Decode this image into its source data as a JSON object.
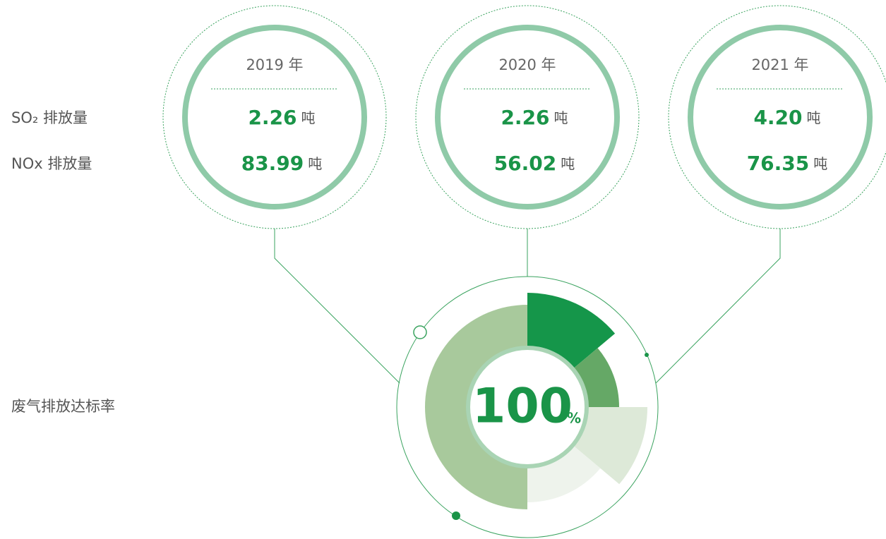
{
  "row_labels": {
    "so2": "SO₂ 排放量",
    "nox": "NOx 排放量",
    "rate": "废气排放达标率"
  },
  "unit": "吨",
  "years": [
    {
      "year": "2019 年",
      "so2": "2.26",
      "nox": "83.99"
    },
    {
      "year": "2020 年",
      "so2": "2.26",
      "nox": "56.02"
    },
    {
      "year": "2021 年",
      "so2": "4.20",
      "nox": "76.35"
    }
  ],
  "rate": {
    "value": "100",
    "unit": "%"
  }
}
